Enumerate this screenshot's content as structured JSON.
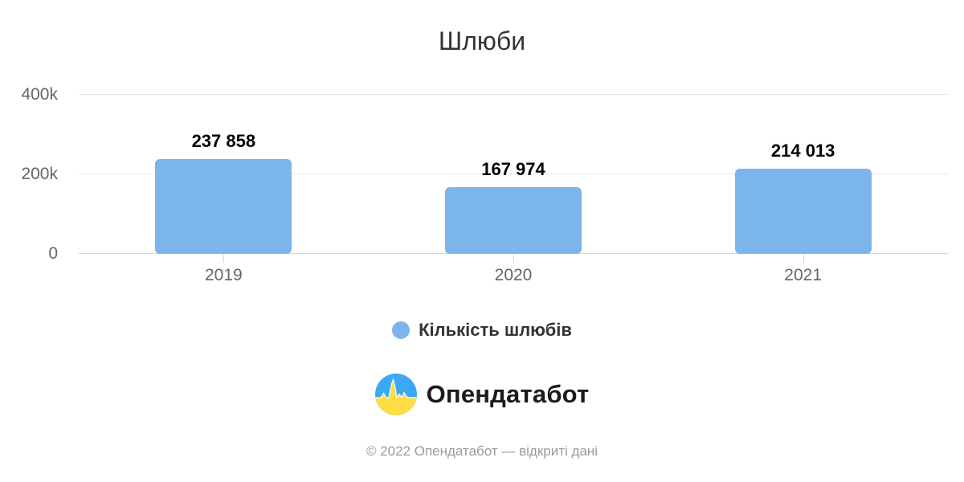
{
  "title": "Шлюби",
  "chart_data": {
    "type": "bar",
    "title": "Шлюби",
    "categories": [
      "2019",
      "2020",
      "2021"
    ],
    "series": [
      {
        "name": "Кількість шлюбів",
        "values": [
          237858,
          167974,
          214013
        ]
      }
    ],
    "value_labels": [
      "237 858",
      "167 974",
      "214 013"
    ],
    "xlabel": "",
    "ylabel": "",
    "ylim": [
      0,
      400000
    ],
    "yticks": [
      {
        "label": "400k",
        "value": 400000
      },
      {
        "label": "200k",
        "value": 200000
      },
      {
        "label": "0",
        "value": 0
      }
    ],
    "grid": true,
    "legend_position": "bottom",
    "colors": {
      "bar": "#7CB5EC",
      "grid": "#E6E6E6",
      "axis": "#CCD6EB",
      "tick_label": "#666666",
      "title": "#333333",
      "value_label": "#000000"
    }
  },
  "legend": {
    "items": [
      {
        "label": "Кількість шлюбів",
        "color": "#7CB5EC"
      }
    ]
  },
  "branding": {
    "logo_text": "Опендатабот",
    "logo_icon": "opendatabot-pulse-icon",
    "logo_colors": {
      "top": "#3BA9F2",
      "bottom": "#FFDD44",
      "pulse_outline": "#FFFFFF"
    }
  },
  "footer": {
    "text": "© 2022 Опендатабот — відкриті дані"
  }
}
